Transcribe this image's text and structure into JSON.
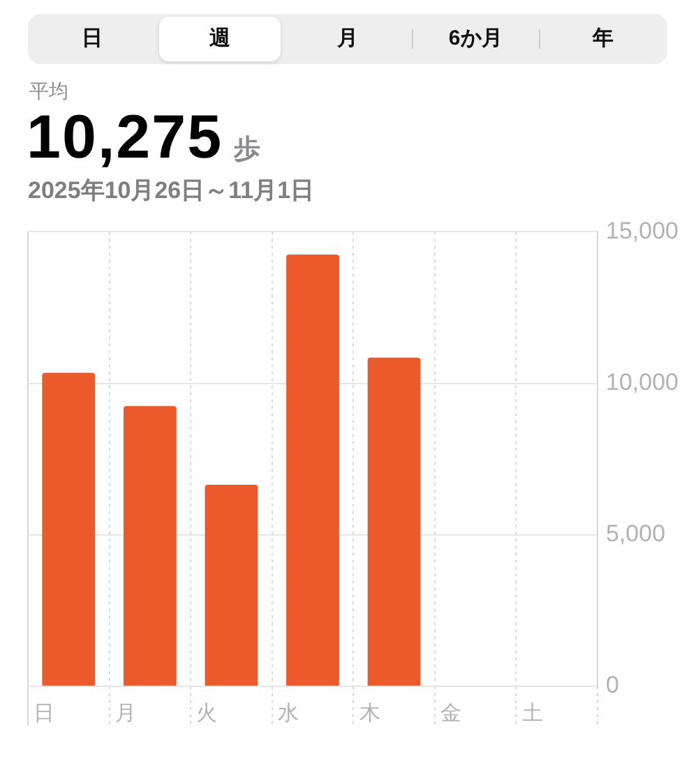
{
  "chart_data": {
    "type": "bar",
    "title": "10,275 歩",
    "subtitle": "2025年10月26日～11月1日",
    "annotations": [
      "日",
      "週",
      "月",
      "6か月",
      "年",
      "平均"
    ],
    "categories": [
      "日",
      "月",
      "火",
      "水",
      "木",
      "金",
      "土"
    ],
    "values": [
      10350,
      9250,
      6650,
      14250,
      10850,
      null,
      null
    ],
    "color": "#ea5a2b",
    "ylim": [
      0,
      15000
    ],
    "yticks": [
      0,
      {
        "value": 5000,
        "label": "5,000"
      },
      {
        "value": 10000,
        "label": "10,000"
      },
      {
        "value": 15000,
        "label": "15,000"
      }
    ],
    "grid": true
  }
}
